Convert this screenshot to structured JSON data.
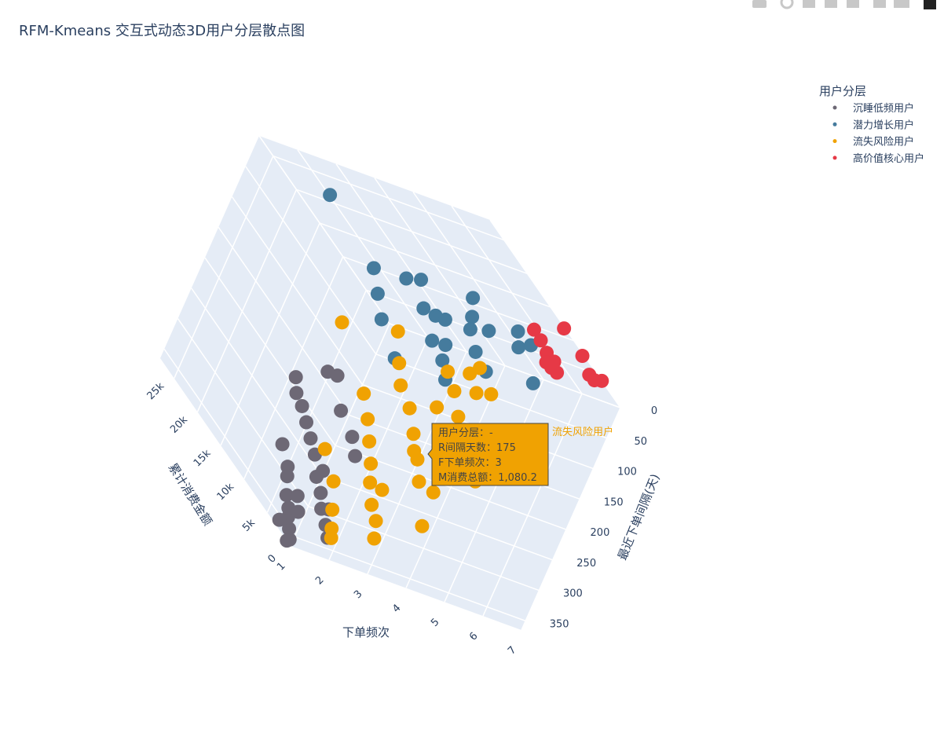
{
  "chart_data": {
    "type": "scatter3d",
    "title": "RFM-Kmeans 交互式动态3D用户分层散点图",
    "xlabel": "最近下单间隔(天)",
    "ylabel": "下单频次",
    "zlabel": "累计消费金额",
    "xlim": [
      0,
      365
    ],
    "ylim": [
      1,
      7
    ],
    "zlim": [
      0,
      28000
    ],
    "xticks": [
      0,
      50,
      100,
      150,
      200,
      250,
      300,
      350
    ],
    "yticks": [
      1,
      2,
      3,
      4,
      5,
      6,
      7
    ],
    "zticks": [
      0,
      {
        "value": 5000,
        "label": "5k"
      },
      {
        "value": 10000,
        "label": "10k"
      },
      {
        "value": 15000,
        "label": "15k"
      },
      {
        "value": 20000,
        "label": "20k"
      },
      {
        "value": 25000,
        "label": "25k"
      }
    ],
    "legend_title": "用户分层",
    "legend": "top-right",
    "series": [
      {
        "name": "沉睡低频用户",
        "color": "#6d6875",
        "x": [
          360,
          350,
          340,
          330,
          320,
          355,
          345,
          335,
          325,
          310,
          300,
          290,
          280,
          300,
          270,
          260,
          250,
          240,
          230,
          220,
          210,
          320,
          365,
          315,
          285,
          275,
          250,
          265,
          245,
          305
        ],
        "y": [
          1,
          1,
          1,
          1,
          1,
          1,
          2,
          2,
          2,
          2,
          2,
          1,
          2,
          1,
          2,
          2,
          2,
          3,
          2,
          3,
          3,
          1,
          1,
          2,
          2,
          1,
          3,
          3,
          2,
          1
        ],
        "z": [
          500,
          1200,
          2000,
          2500,
          3500,
          3000,
          1500,
          2500,
          4000,
          5000,
          6500,
          5000,
          8000,
          4500,
          9500,
          11000,
          12500,
          13000,
          15000,
          17000,
          15500,
          1000,
          800,
          3000,
          6000,
          7000,
          10000,
          8500,
          14000,
          2000
        ]
      },
      {
        "name": "潜力增长用户",
        "color": "#457b9d",
        "x": [
          60,
          50,
          70,
          40,
          80,
          30,
          55,
          65,
          45,
          35,
          90,
          75,
          25,
          50,
          85,
          20,
          60,
          40,
          30,
          100,
          15,
          70,
          110,
          55,
          40
        ],
        "y": [
          4,
          4,
          3,
          5,
          4,
          5,
          5,
          4,
          6,
          4,
          3,
          5,
          6,
          3,
          4,
          5,
          6,
          4,
          6,
          4,
          6,
          5,
          3,
          4,
          3
        ],
        "z": [
          14000,
          12000,
          15000,
          13000,
          11000,
          10000,
          12500,
          9000,
          11000,
          16000,
          13000,
          8000,
          9500,
          17000,
          8500,
          14000,
          7000,
          10500,
          12000,
          7000,
          6000,
          10500,
          9000,
          18000,
          27000
        ]
      },
      {
        "name": "流失风险用户",
        "color": "#f0a202",
        "x": [
          340,
          330,
          320,
          310,
          300,
          290,
          280,
          270,
          260,
          250,
          240,
          230,
          220,
          210,
          200,
          190,
          180,
          170,
          160,
          150,
          140,
          130,
          120,
          110,
          100,
          90,
          80,
          175,
          260,
          200,
          150,
          120,
          230,
          140,
          280
        ],
        "y": [
          2,
          2,
          3,
          2,
          3,
          3,
          2,
          3,
          3,
          3,
          4,
          3,
          4,
          3,
          4,
          3,
          4,
          4,
          5,
          4,
          5,
          5,
          4,
          5,
          5,
          5,
          5,
          3,
          2,
          5,
          3,
          6,
          4,
          4,
          4
        ],
        "z": [
          1000,
          1500,
          1200,
          2500,
          2000,
          3500,
          4000,
          5000,
          3000,
          6000,
          4500,
          7500,
          6000,
          9000,
          8000,
          11000,
          10000,
          12500,
          9000,
          14000,
          11000,
          13000,
          16000,
          8000,
          10000,
          6000,
          9000,
          1080.2,
          7000,
          3000,
          18000,
          4000,
          2000,
          6500,
          1500
        ]
      },
      {
        "name": "高价值核心用户",
        "color": "#e63946",
        "x": [
          5,
          10,
          8,
          12,
          3,
          15,
          6,
          20,
          2,
          0,
          10,
          18
        ],
        "y": [
          6,
          6,
          6,
          7,
          7,
          6,
          6,
          6,
          7,
          7,
          7,
          6
        ],
        "z": [
          10000,
          7000,
          5500,
          6000,
          8000,
          4500,
          8500,
          6500,
          12000,
          4000,
          5000,
          5500
        ]
      }
    ],
    "hover": {
      "lines": [
        "用户分层：-",
        "R间隔天数：175",
        "F下单频次：3",
        "M消费总额：1,080.2"
      ],
      "name": "流失风险用户"
    }
  }
}
